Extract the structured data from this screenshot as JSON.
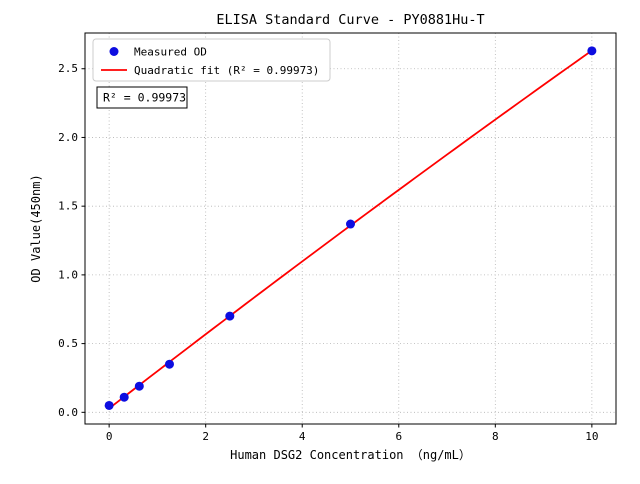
{
  "figure": {
    "background": "#ffffff"
  },
  "chart_data": {
    "type": "scatter",
    "title": "ELISA Standard Curve - PY0881Hu-T",
    "xlabel": "Human DSG2 Concentration （ng/mL）",
    "ylabel": "OD Value(450nm)",
    "xlim": [
      -0.5,
      10.5
    ],
    "ylim": [
      -0.085,
      2.76
    ],
    "xticks": {
      "values": [
        0,
        2,
        4,
        6,
        8,
        10
      ],
      "labels": [
        "0",
        "2",
        "4",
        "6",
        "8",
        "10"
      ]
    },
    "yticks": {
      "values": [
        0.0,
        0.5,
        1.0,
        1.5,
        2.0,
        2.5
      ],
      "labels": [
        "0.0",
        "0.5",
        "1.0",
        "1.5",
        "2.0",
        "2.5"
      ]
    },
    "grid": {
      "on": true,
      "style": "dotted",
      "color": "#b3b3b3"
    },
    "legend": {
      "position": "upper-left",
      "entries": [
        {
          "label": "Measured OD",
          "marker": "circle",
          "color": "#0d0de0"
        },
        {
          "label": "Quadratic fit (R² = 0.99973)",
          "marker": "line",
          "color": "#ff0000"
        }
      ]
    },
    "annotation": {
      "text": "R² = 0.99973"
    },
    "series": [
      {
        "name": "Measured OD",
        "type": "scatter",
        "color": "#0d0de0",
        "x": [
          0,
          0.312,
          0.625,
          1.25,
          2.5,
          5,
          10
        ],
        "y": [
          0.05,
          0.11,
          0.19,
          0.35,
          0.7,
          1.37,
          2.63
        ]
      },
      {
        "name": "Quadratic fit",
        "type": "line",
        "color": "#ff0000",
        "fit": "quadratic",
        "r_squared": 0.99973,
        "x_range": [
          0,
          10
        ]
      }
    ]
  }
}
